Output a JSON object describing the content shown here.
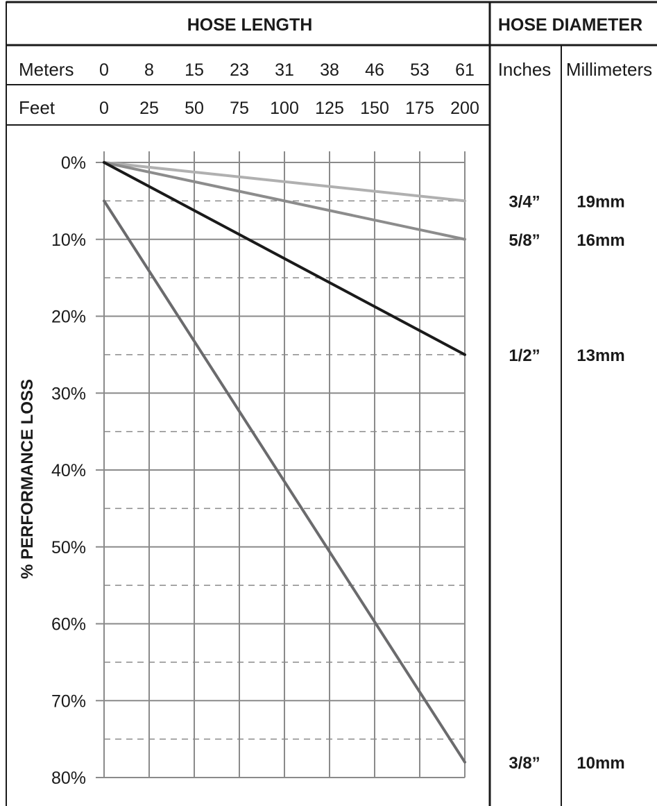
{
  "header": {
    "hose_length": "HOSE LENGTH",
    "hose_diameter": "HOSE DIAMETER"
  },
  "rows": {
    "meters_label": "Meters",
    "feet_label": "Feet",
    "inches_label": "Inches",
    "millimeters_label": "Millimeters"
  },
  "chart_data": {
    "type": "line",
    "title": "",
    "xlabel": "HOSE LENGTH",
    "ylabel": "% PERFORMANCE LOSS",
    "x": [
      0,
      25,
      50,
      75,
      100,
      125,
      150,
      175,
      200
    ],
    "x_tick_labels_feet": [
      "0",
      "25",
      "50",
      "75",
      "100",
      "125",
      "150",
      "175",
      "200"
    ],
    "x_tick_labels_meters": [
      "0",
      "8",
      "15",
      "23",
      "31",
      "38",
      "46",
      "53",
      "61"
    ],
    "y_tick_labels": [
      "0%",
      "10%",
      "20%",
      "30%",
      "40%",
      "50%",
      "60%",
      "70%",
      "80%"
    ],
    "xlim": [
      0,
      200
    ],
    "ylim": [
      0,
      80
    ],
    "y_inverted": true,
    "grid": true,
    "series": [
      {
        "name": "3/4\" 19mm",
        "inches": "3/4”",
        "mm": "19mm",
        "x": [
          0,
          200
        ],
        "values": [
          0,
          5
        ],
        "color": "#b0b0b0"
      },
      {
        "name": "5/8\" 16mm",
        "inches": "5/8”",
        "mm": "16mm",
        "x": [
          0,
          200
        ],
        "values": [
          0,
          10
        ],
        "color": "#8c8c8c"
      },
      {
        "name": "1/2\" 13mm",
        "inches": "1/2”",
        "mm": "13mm",
        "x": [
          0,
          200
        ],
        "values": [
          0,
          25
        ],
        "color": "#1a1a1a"
      },
      {
        "name": "3/8\" 10mm",
        "inches": "3/8”",
        "mm": "10mm",
        "x": [
          0,
          200
        ],
        "values": [
          5,
          78
        ],
        "color": "#6b6b6d"
      }
    ]
  }
}
